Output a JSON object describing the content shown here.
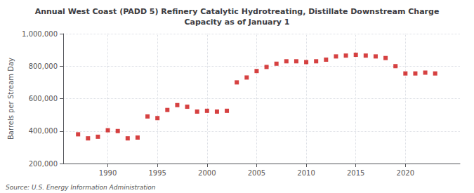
{
  "chart_data": {
    "type": "scatter",
    "title": "Annual West Coast (PADD 5) Refinery Catalytic Hydrotreating, Distillate Downstream Charge\nCapacity as of January 1",
    "ylabel": "Barrels per Stream Day",
    "source": "Source: U.S. Energy Information Administration",
    "x": [
      1987,
      1988,
      1989,
      1990,
      1991,
      1992,
      1993,
      1994,
      1995,
      1996,
      1997,
      1998,
      1999,
      2000,
      2001,
      2002,
      2003,
      2004,
      2005,
      2006,
      2007,
      2008,
      2009,
      2010,
      2011,
      2012,
      2013,
      2014,
      2015,
      2016,
      2017,
      2018,
      2019,
      2020,
      2021,
      2022,
      2023
    ],
    "values": [
      380000,
      355000,
      365000,
      405000,
      400000,
      355000,
      360000,
      490000,
      480000,
      530000,
      560000,
      550000,
      520000,
      525000,
      520000,
      525000,
      700000,
      730000,
      770000,
      795000,
      815000,
      830000,
      830000,
      825000,
      830000,
      840000,
      860000,
      865000,
      870000,
      865000,
      860000,
      850000,
      800000,
      755000,
      755000,
      760000,
      755000
    ],
    "color": "#cc1111",
    "marker": "square",
    "xlim": [
      1985.5,
      2025.5
    ],
    "xticks": [
      1990,
      1995,
      2000,
      2005,
      2010,
      2015,
      2020
    ],
    "ylim": [
      200000,
      1000000
    ],
    "yticks": [
      {
        "value": 200000,
        "label": "200,000"
      },
      {
        "value": 400000,
        "label": "400,000"
      },
      {
        "value": 600000,
        "label": "600,000"
      },
      {
        "value": 800000,
        "label": "800,000"
      },
      {
        "value": 1000000,
        "label": "1,000,000"
      }
    ],
    "grid": true
  }
}
